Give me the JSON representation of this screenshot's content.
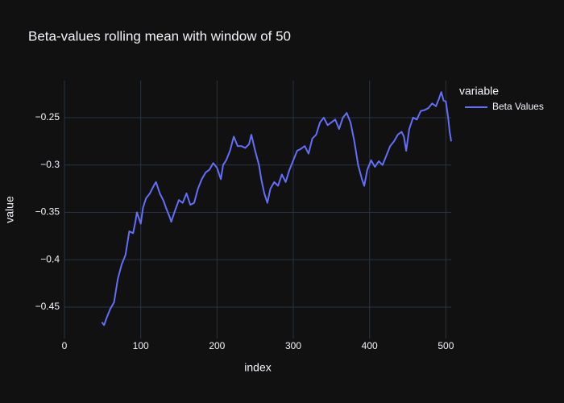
{
  "chart_data": {
    "type": "line",
    "title": "Beta-values rolling mean with window of 50",
    "x_label": "index",
    "y_label": "value",
    "legend_title": "variable",
    "x": [
      49,
      52,
      55,
      60,
      65,
      70,
      75,
      80,
      85,
      90,
      93,
      95,
      100,
      103,
      107,
      112,
      117,
      120,
      125,
      130,
      133,
      138,
      140,
      145,
      150,
      155,
      160,
      165,
      170,
      175,
      180,
      185,
      190,
      195,
      200,
      205,
      208,
      212,
      217,
      222,
      227,
      232,
      237,
      242,
      245,
      250,
      255,
      258,
      262,
      266,
      270,
      275,
      280,
      285,
      290,
      295,
      300,
      305,
      310,
      315,
      320,
      325,
      330,
      335,
      340,
      345,
      350,
      355,
      360,
      365,
      370,
      375,
      380,
      385,
      390,
      393,
      397,
      402,
      407,
      412,
      417,
      422,
      427,
      432,
      437,
      442,
      445,
      448,
      452,
      457,
      462,
      467,
      472,
      477,
      482,
      487,
      491,
      494,
      497,
      500,
      503,
      505,
      507
    ],
    "series": [
      {
        "name": "Beta Values",
        "color": "#636efa",
        "values": [
          -0.466,
          -0.469,
          -0.462,
          -0.452,
          -0.445,
          -0.42,
          -0.405,
          -0.395,
          -0.37,
          -0.372,
          -0.36,
          -0.35,
          -0.362,
          -0.345,
          -0.335,
          -0.33,
          -0.322,
          -0.318,
          -0.33,
          -0.338,
          -0.345,
          -0.355,
          -0.36,
          -0.348,
          -0.337,
          -0.34,
          -0.33,
          -0.342,
          -0.34,
          -0.325,
          -0.315,
          -0.308,
          -0.305,
          -0.298,
          -0.303,
          -0.315,
          -0.3,
          -0.295,
          -0.285,
          -0.27,
          -0.28,
          -0.28,
          -0.282,
          -0.278,
          -0.268,
          -0.285,
          -0.3,
          -0.315,
          -0.33,
          -0.34,
          -0.325,
          -0.318,
          -0.322,
          -0.31,
          -0.318,
          -0.305,
          -0.295,
          -0.285,
          -0.283,
          -0.28,
          -0.288,
          -0.272,
          -0.268,
          -0.255,
          -0.25,
          -0.258,
          -0.255,
          -0.252,
          -0.262,
          -0.25,
          -0.245,
          -0.255,
          -0.275,
          -0.3,
          -0.315,
          -0.322,
          -0.305,
          -0.295,
          -0.302,
          -0.296,
          -0.3,
          -0.29,
          -0.28,
          -0.275,
          -0.268,
          -0.265,
          -0.27,
          -0.285,
          -0.262,
          -0.25,
          -0.252,
          -0.243,
          -0.242,
          -0.24,
          -0.235,
          -0.238,
          -0.23,
          -0.223,
          -0.232,
          -0.233,
          -0.25,
          -0.265,
          -0.275
        ]
      }
    ],
    "xlim": [
      0,
      507
    ],
    "ylim": [
      -0.4832,
      -0.2109
    ],
    "xticks": [
      0,
      100,
      200,
      300,
      400,
      500
    ],
    "yticks": [
      {
        "value": -0.45,
        "label": "−0.45"
      },
      {
        "value": -0.4,
        "label": "−0.4"
      },
      {
        "value": -0.35,
        "label": "−0.35"
      },
      {
        "value": -0.3,
        "label": "−0.3"
      },
      {
        "value": -0.25,
        "label": "−0.25"
      }
    ],
    "grid": true,
    "legend_position": "right",
    "background": "#111111",
    "grid_color": "#283442"
  }
}
